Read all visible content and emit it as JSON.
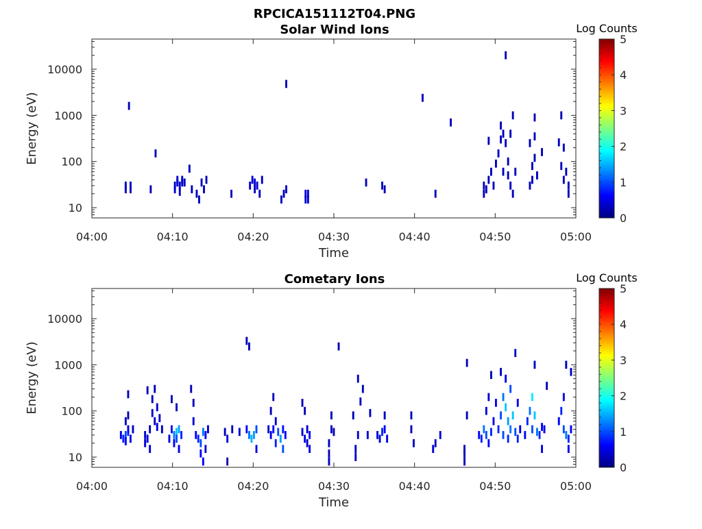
{
  "figure_title": "RPCICA151112T04.PNG",
  "colormap": [
    "#00007f",
    "#0000ff",
    "#007fff",
    "#00ffff",
    "#7fff7f",
    "#ffff00",
    "#ff7f00",
    "#ff0000",
    "#7f0000"
  ],
  "chart_data": [
    {
      "type": "heatmap",
      "title": "Solar Wind Ions",
      "xlabel": "Time",
      "ylabel": "Energy (eV)",
      "x_range_minutes": [
        0,
        60
      ],
      "x_ticks": [
        "04:00",
        "04:10",
        "04:20",
        "04:30",
        "04:40",
        "04:50",
        "05:00"
      ],
      "y_scale": "log",
      "ylim": [
        6,
        45000
      ],
      "y_ticks": [
        {
          "value": 10,
          "label": "10"
        },
        {
          "value": 100,
          "label": "100"
        },
        {
          "value": 1000,
          "label": "1000"
        },
        {
          "value": 10000,
          "label": "10000"
        }
      ],
      "colorbar": {
        "label": "Log Counts",
        "min": 0,
        "max": 5,
        "ticks": [
          "0",
          "1",
          "2",
          "3",
          "4",
          "5"
        ]
      },
      "points": [
        [
          4.2,
          25,
          0.3
        ],
        [
          4.2,
          30,
          0.3
        ],
        [
          4.8,
          25,
          0.3
        ],
        [
          4.8,
          30,
          0.3
        ],
        [
          4.6,
          1600,
          0.3
        ],
        [
          7.3,
          25,
          0.3
        ],
        [
          7.9,
          150,
          0.3
        ],
        [
          10.3,
          25,
          0.4
        ],
        [
          10.3,
          30,
          0.4
        ],
        [
          10.6,
          35,
          0.4
        ],
        [
          10.6,
          40,
          0.4
        ],
        [
          10.9,
          30,
          0.4
        ],
        [
          11.2,
          40,
          0.4
        ],
        [
          11.2,
          35,
          0.4
        ],
        [
          10.9,
          22,
          0.3
        ],
        [
          11.5,
          35,
          0.3
        ],
        [
          12.1,
          70,
          0.3
        ],
        [
          12.4,
          25,
          0.3
        ],
        [
          13.0,
          20,
          0.3
        ],
        [
          13.3,
          15,
          0.3
        ],
        [
          13.6,
          35,
          0.3
        ],
        [
          13.9,
          25,
          0.3
        ],
        [
          14.2,
          40,
          0.3
        ],
        [
          17.3,
          20,
          0.3
        ],
        [
          19.6,
          30,
          0.4
        ],
        [
          19.9,
          40,
          0.4
        ],
        [
          20.2,
          35,
          0.4
        ],
        [
          20.5,
          30,
          0.4
        ],
        [
          20.8,
          20,
          0.3
        ],
        [
          21.1,
          40,
          0.3
        ],
        [
          20.2,
          25,
          0.3
        ],
        [
          23.5,
          15,
          0.3
        ],
        [
          23.8,
          20,
          0.3
        ],
        [
          24.1,
          25,
          0.3
        ],
        [
          24.1,
          4800,
          0.3
        ],
        [
          26.5,
          15,
          0.4
        ],
        [
          26.5,
          20,
          0.4
        ],
        [
          26.8,
          15,
          0.4
        ],
        [
          26.8,
          20,
          0.4
        ],
        [
          34.0,
          35,
          0.3
        ],
        [
          36.0,
          30,
          0.3
        ],
        [
          36.3,
          25,
          0.3
        ],
        [
          41.0,
          2400,
          0.3
        ],
        [
          42.6,
          20,
          0.3
        ],
        [
          44.5,
          700,
          0.3
        ],
        [
          48.6,
          20,
          0.3
        ],
        [
          48.6,
          30,
          0.3
        ],
        [
          48.9,
          25,
          0.3
        ],
        [
          49.2,
          40,
          0.3
        ],
        [
          49.2,
          280,
          0.3
        ],
        [
          49.5,
          60,
          0.3
        ],
        [
          49.8,
          30,
          0.3
        ],
        [
          50.1,
          90,
          0.3
        ],
        [
          50.4,
          150,
          0.3
        ],
        [
          50.7,
          300,
          0.3
        ],
        [
          50.7,
          600,
          0.3
        ],
        [
          51.0,
          400,
          0.3
        ],
        [
          51.0,
          60,
          0.3
        ],
        [
          51.3,
          250,
          0.3
        ],
        [
          51.3,
          20000,
          0.3
        ],
        [
          51.6,
          100,
          0.3
        ],
        [
          51.6,
          50,
          0.3
        ],
        [
          51.9,
          30,
          0.3
        ],
        [
          51.9,
          400,
          0.3
        ],
        [
          52.2,
          20,
          0.3
        ],
        [
          52.2,
          1000,
          0.3
        ],
        [
          52.5,
          60,
          0.3
        ],
        [
          54.3,
          30,
          0.3
        ],
        [
          54.3,
          250,
          0.3
        ],
        [
          54.6,
          80,
          0.3
        ],
        [
          54.6,
          40,
          0.3
        ],
        [
          54.9,
          120,
          0.3
        ],
        [
          54.9,
          350,
          0.3
        ],
        [
          54.9,
          900,
          0.3
        ],
        [
          55.2,
          50,
          0.3
        ],
        [
          55.8,
          160,
          0.3
        ],
        [
          57.9,
          260,
          0.3
        ],
        [
          58.2,
          1000,
          0.3
        ],
        [
          58.2,
          80,
          0.3
        ],
        [
          58.5,
          40,
          0.3
        ],
        [
          58.5,
          200,
          0.3
        ],
        [
          58.8,
          60,
          0.3
        ],
        [
          59.1,
          30,
          0.3
        ],
        [
          59.1,
          20,
          0.3
        ]
      ]
    },
    {
      "type": "heatmap",
      "title": "Cometary Ions",
      "xlabel": "Time",
      "ylabel": "Energy (eV)",
      "x_range_minutes": [
        0,
        60
      ],
      "x_ticks": [
        "04:00",
        "04:10",
        "04:20",
        "04:30",
        "04:40",
        "04:50",
        "05:00"
      ],
      "y_scale": "log",
      "ylim": [
        6,
        45000
      ],
      "y_ticks": [
        {
          "value": 10,
          "label": "10"
        },
        {
          "value": 100,
          "label": "100"
        },
        {
          "value": 1000,
          "label": "1000"
        },
        {
          "value": 10000,
          "label": "10000"
        }
      ],
      "colorbar": {
        "label": "Log Counts",
        "min": 0,
        "max": 5,
        "ticks": [
          "0",
          "1",
          "2",
          "3",
          "4",
          "5"
        ]
      },
      "points": [
        [
          3.6,
          30,
          0.5
        ],
        [
          3.9,
          25,
          0.8
        ],
        [
          4.2,
          30,
          1.0
        ],
        [
          4.2,
          22,
          0.6
        ],
        [
          4.5,
          35,
          0.8
        ],
        [
          4.5,
          40,
          0.5
        ],
        [
          4.2,
          60,
          0.3
        ],
        [
          4.5,
          80,
          0.3
        ],
        [
          4.5,
          230,
          0.3
        ],
        [
          4.8,
          25,
          0.5
        ],
        [
          5.1,
          40,
          0.4
        ],
        [
          6.6,
          30,
          0.4
        ],
        [
          6.6,
          20,
          0.4
        ],
        [
          6.9,
          25,
          0.5
        ],
        [
          7.2,
          15,
          0.4
        ],
        [
          7.2,
          40,
          0.3
        ],
        [
          6.9,
          280,
          0.3
        ],
        [
          7.5,
          180,
          0.3
        ],
        [
          7.5,
          90,
          0.4
        ],
        [
          7.8,
          300,
          0.3
        ],
        [
          7.8,
          60,
          0.4
        ],
        [
          8.1,
          120,
          0.4
        ],
        [
          8.1,
          45,
          0.5
        ],
        [
          8.4,
          70,
          0.4
        ],
        [
          8.7,
          40,
          0.3
        ],
        [
          9.6,
          25,
          0.5
        ],
        [
          9.9,
          40,
          0.7
        ],
        [
          10.2,
          30,
          1.2
        ],
        [
          10.2,
          20,
          0.6
        ],
        [
          10.5,
          35,
          1.6
        ],
        [
          10.5,
          25,
          1.0
        ],
        [
          10.8,
          40,
          1.4
        ],
        [
          10.8,
          15,
          0.5
        ],
        [
          11.1,
          30,
          0.8
        ],
        [
          10.5,
          120,
          0.3
        ],
        [
          9.9,
          180,
          0.3
        ],
        [
          12.3,
          300,
          0.3
        ],
        [
          12.6,
          150,
          0.3
        ],
        [
          12.6,
          60,
          0.4
        ],
        [
          12.9,
          30,
          0.6
        ],
        [
          13.2,
          25,
          0.8
        ],
        [
          13.5,
          20,
          1.0
        ],
        [
          13.5,
          12,
          0.6
        ],
        [
          13.8,
          35,
          1.2
        ],
        [
          13.8,
          8,
          0.6
        ],
        [
          14.1,
          30,
          0.6
        ],
        [
          14.1,
          15,
          0.4
        ],
        [
          14.4,
          40,
          0.4
        ],
        [
          16.5,
          35,
          0.3
        ],
        [
          16.8,
          25,
          0.4
        ],
        [
          16.8,
          8,
          0.3
        ],
        [
          17.4,
          40,
          0.3
        ],
        [
          18.3,
          35,
          0.4
        ],
        [
          19.2,
          40,
          0.6
        ],
        [
          19.5,
          30,
          1.2
        ],
        [
          19.8,
          25,
          1.5
        ],
        [
          20.1,
          30,
          1.4
        ],
        [
          20.4,
          40,
          1.0
        ],
        [
          20.4,
          15,
          0.5
        ],
        [
          19.2,
          3300,
          0.3
        ],
        [
          19.5,
          2500,
          0.3
        ],
        [
          21.9,
          40,
          0.4
        ],
        [
          22.2,
          30,
          0.5
        ],
        [
          22.2,
          100,
          0.3
        ],
        [
          22.5,
          40,
          0.6
        ],
        [
          22.5,
          200,
          0.3
        ],
        [
          22.8,
          20,
          0.8
        ],
        [
          22.8,
          60,
          0.4
        ],
        [
          23.1,
          35,
          1.0
        ],
        [
          23.4,
          25,
          1.4
        ],
        [
          23.7,
          15,
          1.0
        ],
        [
          23.7,
          40,
          0.7
        ],
        [
          24.0,
          30,
          0.6
        ],
        [
          26.1,
          35,
          0.4
        ],
        [
          26.1,
          150,
          0.3
        ],
        [
          26.4,
          25,
          0.5
        ],
        [
          26.4,
          100,
          0.3
        ],
        [
          26.7,
          40,
          0.4
        ],
        [
          26.7,
          20,
          0.4
        ],
        [
          27.0,
          30,
          0.6
        ],
        [
          27.0,
          15,
          0.5
        ],
        [
          29.4,
          8,
          0.3
        ],
        [
          29.4,
          12,
          0.3
        ],
        [
          29.4,
          20,
          0.3
        ],
        [
          29.7,
          40,
          0.3
        ],
        [
          29.7,
          80,
          0.3
        ],
        [
          30.0,
          35,
          0.3
        ],
        [
          30.6,
          2500,
          0.3
        ],
        [
          32.4,
          80,
          0.3
        ],
        [
          32.7,
          10,
          0.3
        ],
        [
          32.7,
          15,
          0.3
        ],
        [
          33.0,
          30,
          0.4
        ],
        [
          33.0,
          500,
          0.3
        ],
        [
          33.3,
          160,
          0.3
        ],
        [
          33.6,
          300,
          0.3
        ],
        [
          34.2,
          30,
          0.4
        ],
        [
          34.5,
          90,
          0.3
        ],
        [
          35.4,
          30,
          0.4
        ],
        [
          35.7,
          25,
          0.5
        ],
        [
          36.0,
          35,
          0.8
        ],
        [
          36.3,
          40,
          0.6
        ],
        [
          36.3,
          80,
          0.3
        ],
        [
          36.6,
          25,
          0.5
        ],
        [
          39.6,
          80,
          0.3
        ],
        [
          39.6,
          40,
          0.3
        ],
        [
          39.9,
          20,
          0.3
        ],
        [
          42.3,
          15,
          0.4
        ],
        [
          42.6,
          20,
          0.4
        ],
        [
          43.2,
          30,
          0.4
        ],
        [
          46.5,
          1100,
          0.3
        ],
        [
          46.5,
          80,
          0.3
        ],
        [
          46.2,
          8,
          0.3
        ],
        [
          46.2,
          12,
          0.3
        ],
        [
          46.2,
          15,
          0.3
        ],
        [
          48.0,
          30,
          0.6
        ],
        [
          48.3,
          25,
          0.8
        ],
        [
          48.6,
          40,
          1.2
        ],
        [
          48.9,
          30,
          1.0
        ],
        [
          48.9,
          100,
          0.4
        ],
        [
          49.2,
          200,
          0.4
        ],
        [
          49.2,
          20,
          0.6
        ],
        [
          49.5,
          35,
          0.8
        ],
        [
          49.5,
          600,
          0.3
        ],
        [
          49.8,
          60,
          0.5
        ],
        [
          50.1,
          150,
          0.6
        ],
        [
          50.4,
          40,
          0.8
        ],
        [
          50.7,
          80,
          1.0
        ],
        [
          50.7,
          700,
          0.3
        ],
        [
          51.0,
          30,
          1.0
        ],
        [
          51.0,
          200,
          1.2
        ],
        [
          51.3,
          120,
          1.6
        ],
        [
          51.3,
          500,
          0.6
        ],
        [
          51.6,
          60,
          1.4
        ],
        [
          51.6,
          25,
          0.8
        ],
        [
          51.9,
          40,
          1.2
        ],
        [
          51.9,
          300,
          1.0
        ],
        [
          52.2,
          80,
          1.6
        ],
        [
          52.5,
          35,
          1.0
        ],
        [
          52.5,
          1800,
          0.3
        ],
        [
          52.8,
          25,
          0.8
        ],
        [
          52.8,
          150,
          0.6
        ],
        [
          53.1,
          40,
          0.5
        ],
        [
          53.7,
          30,
          0.6
        ],
        [
          54.0,
          60,
          0.8
        ],
        [
          54.3,
          100,
          1.2
        ],
        [
          54.6,
          200,
          1.8
        ],
        [
          54.6,
          40,
          1.0
        ],
        [
          54.9,
          80,
          1.6
        ],
        [
          54.9,
          1000,
          0.4
        ],
        [
          55.2,
          35,
          1.2
        ],
        [
          55.5,
          30,
          0.8
        ],
        [
          55.8,
          45,
          0.6
        ],
        [
          55.8,
          15,
          0.5
        ],
        [
          56.1,
          40,
          0.5
        ],
        [
          56.4,
          350,
          0.3
        ],
        [
          57.9,
          60,
          0.6
        ],
        [
          58.2,
          100,
          0.8
        ],
        [
          58.5,
          40,
          1.0
        ],
        [
          58.5,
          200,
          0.5
        ],
        [
          58.8,
          30,
          1.2
        ],
        [
          59.1,
          25,
          0.8
        ],
        [
          59.1,
          15,
          0.5
        ],
        [
          59.4,
          40,
          0.6
        ],
        [
          58.8,
          1000,
          0.3
        ],
        [
          59.4,
          700,
          0.3
        ]
      ]
    }
  ]
}
